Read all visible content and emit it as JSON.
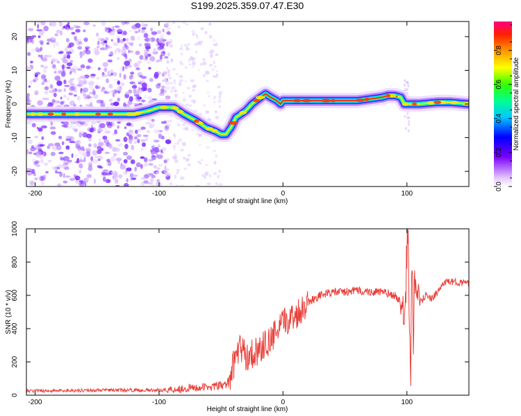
{
  "title": "S199.2025.359.07.47.E30",
  "chart_data": [
    {
      "type": "heatmap",
      "title": "S199.2025.359.07.47.E30",
      "xlabel": "Height of straight line (km)",
      "ylabel": "Frequency (Hz)",
      "xlim": [
        -207,
        150
      ],
      "ylim": [
        -24.5,
        24.5
      ],
      "xticks": [
        -200,
        -100,
        0,
        100
      ],
      "yticks": [
        -20,
        -10,
        0,
        10,
        20
      ],
      "ridge": {
        "x": [
          -207,
          -180,
          -150,
          -120,
          -108,
          -100,
          -95,
          -88,
          -80,
          -70,
          -62,
          -55,
          -50,
          -46,
          -42,
          -38,
          -30,
          -25,
          -18,
          -14,
          -10,
          -5,
          -2,
          0,
          5,
          20,
          40,
          60,
          70,
          80,
          85,
          90,
          95,
          98,
          100,
          110,
          125,
          135,
          150
        ],
        "y": [
          -3,
          -3,
          -3,
          -3,
          -2,
          -1,
          -1,
          -1,
          -3,
          -5,
          -7,
          -8,
          -9,
          -9,
          -7,
          -4,
          -2,
          0,
          2,
          3,
          2,
          1,
          0,
          1,
          1,
          1,
          1,
          1,
          1.5,
          2,
          2.5,
          2.5,
          2,
          0,
          0,
          0,
          0.5,
          0.5,
          0
        ]
      },
      "colorbar": {
        "label": "Normalized spectral amplitude",
        "ticks": [
          "0.0",
          "0.2",
          "0.4",
          "0.6",
          "0.8"
        ],
        "range": [
          0,
          0.97
        ]
      }
    },
    {
      "type": "line",
      "xlabel": "Height of straight line (km)",
      "ylabel": "SNR (10 * v/v)",
      "xlim": [
        -207,
        150
      ],
      "ylim": [
        0,
        1000
      ],
      "xticks": [
        -200,
        -100,
        0,
        100
      ],
      "yticks": [
        0,
        200,
        400,
        600,
        800,
        1000
      ],
      "color": "#e8403a",
      "series": [
        {
          "name": "SNR",
          "x": [
            -207,
            -150,
            -100,
            -80,
            -60,
            -45,
            -40,
            -35,
            -30,
            -20,
            -10,
            0,
            5,
            10,
            15,
            20,
            30,
            40,
            50,
            60,
            70,
            80,
            90,
            95,
            98,
            100,
            101,
            102,
            103,
            104,
            105,
            106,
            108,
            110,
            115,
            120,
            125,
            130,
            140,
            150
          ],
          "values": [
            25,
            30,
            30,
            40,
            50,
            60,
            180,
            300,
            230,
            270,
            330,
            430,
            460,
            480,
            520,
            560,
            600,
            620,
            620,
            630,
            620,
            620,
            600,
            560,
            400,
            850,
            1000,
            380,
            50,
            900,
            300,
            700,
            500,
            550,
            600,
            580,
            620,
            680,
            680,
            670
          ]
        }
      ]
    }
  ]
}
